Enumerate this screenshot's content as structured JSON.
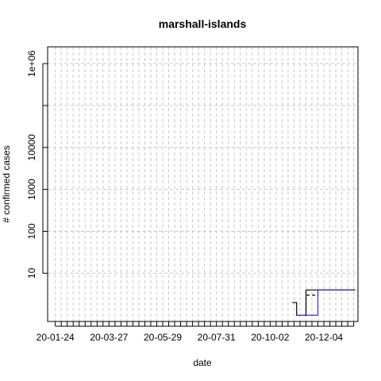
{
  "chart_data": {
    "type": "line",
    "title": "marshall-islands",
    "xlabel": "date",
    "ylabel": "# confirmed cases",
    "y_scale": "log10",
    "x_tick_labels": [
      "20-01-24",
      "20-03-27",
      "20-05-29",
      "20-07-31",
      "20-10-02",
      "20-12-04"
    ],
    "y_tick_labels": [
      "10",
      "100",
      "1000",
      "10000",
      "1e+06"
    ],
    "x_range": [
      "2020-01-15",
      "2021-01-13"
    ],
    "y_range_log10": [
      -0.15,
      6.4
    ],
    "grid": true,
    "series": [
      {
        "style": "solid",
        "color": "#000000",
        "points": [
          [
            "2020-10-28",
            2
          ],
          [
            "2020-11-02",
            2
          ],
          [
            "2020-11-02",
            1
          ],
          [
            "2020-11-13",
            1
          ],
          [
            "2020-11-13",
            4
          ],
          [
            "2021-01-10",
            4
          ]
        ]
      },
      {
        "style": "dashed",
        "color": "#000000",
        "points": [
          [
            "2020-11-11",
            1
          ],
          [
            "2020-11-13",
            1
          ],
          [
            "2020-11-13",
            3
          ],
          [
            "2020-11-27",
            3
          ],
          [
            "2020-11-27",
            4
          ],
          [
            "2021-01-10",
            4
          ]
        ]
      },
      {
        "style": "solid",
        "color": "#3333cc",
        "points": [
          [
            "2020-11-02",
            1
          ],
          [
            "2020-11-27",
            1
          ],
          [
            "2020-11-27",
            4
          ],
          [
            "2021-01-10",
            4
          ]
        ]
      }
    ]
  }
}
